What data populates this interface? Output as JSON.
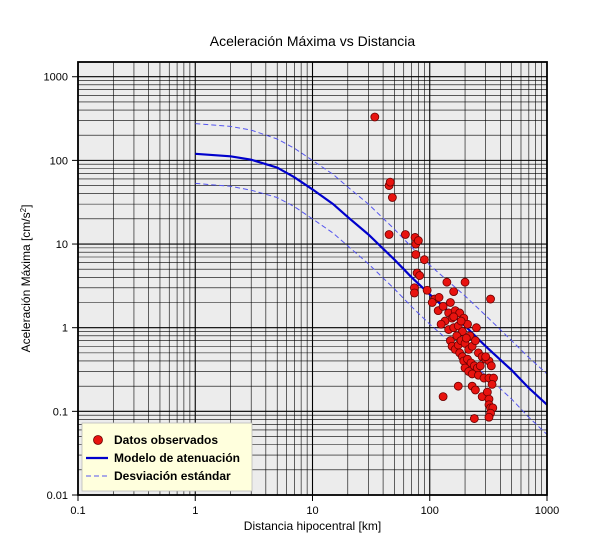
{
  "chart_data": {
    "type": "scatter",
    "title": "Aceleración Máxima vs Distancia",
    "xlabel": "Distancia hipocentral [km]",
    "ylabel": "Aceleración Máxima [cm/s",
    "ylabel_sup": "2",
    "ylabel_end": "]",
    "x_scale": "log",
    "y_scale": "log",
    "xlim": [
      0.1,
      1000
    ],
    "ylim": [
      0.01,
      1500
    ],
    "x_ticks": [
      {
        "value": 0.1,
        "label": "0.1"
      },
      {
        "value": 1,
        "label": "1"
      },
      {
        "value": 10,
        "label": "10"
      },
      {
        "value": 100,
        "label": "100"
      },
      {
        "value": 1000,
        "label": "1000"
      }
    ],
    "y_ticks": [
      {
        "value": 0.01,
        "label": "0.01"
      },
      {
        "value": 0.1,
        "label": "0.1"
      },
      {
        "value": 1,
        "label": "1"
      },
      {
        "value": 10,
        "label": "10"
      },
      {
        "value": 100,
        "label": "100"
      },
      {
        "value": 1000,
        "label": "1000"
      }
    ],
    "grid": true,
    "background_color": "#ececec",
    "legend_position": "bottom-left",
    "legend_background": "#ffffdd",
    "colors": {
      "points": "#e8130f",
      "model": "#0000cc",
      "deviation": "#5555ee"
    },
    "series": [
      {
        "name": "Datos observados",
        "kind": "scatter",
        "points": [
          [
            34,
            330
          ],
          [
            45,
            50
          ],
          [
            46,
            55
          ],
          [
            48,
            36
          ],
          [
            45,
            13
          ],
          [
            62,
            13
          ],
          [
            75,
            12
          ],
          [
            76,
            10
          ],
          [
            80,
            11
          ],
          [
            76,
            7.5
          ],
          [
            90,
            6.5
          ],
          [
            78,
            4.5
          ],
          [
            82,
            4.2
          ],
          [
            95,
            2.8
          ],
          [
            74,
            3.0
          ],
          [
            74,
            2.6
          ],
          [
            110,
            2.2
          ],
          [
            105,
            2.0
          ],
          [
            120,
            2.3
          ],
          [
            118,
            1.6
          ],
          [
            140,
            3.5
          ],
          [
            160,
            2.7
          ],
          [
            200,
            3.5
          ],
          [
            150,
            2.0
          ],
          [
            130,
            1.8
          ],
          [
            145,
            1.5
          ],
          [
            165,
            1.6
          ],
          [
            180,
            1.5
          ],
          [
            195,
            1.3
          ],
          [
            155,
            1.3
          ],
          [
            135,
            1.2
          ],
          [
            125,
            1.1
          ],
          [
            145,
            0.95
          ],
          [
            160,
            1.0
          ],
          [
            175,
            1.05
          ],
          [
            210,
            1.1
          ],
          [
            190,
            0.9
          ],
          [
            220,
            0.8
          ],
          [
            250,
            1.0
          ],
          [
            170,
            0.8
          ],
          [
            150,
            0.7
          ],
          [
            155,
            0.6
          ],
          [
            165,
            0.55
          ],
          [
            175,
            0.62
          ],
          [
            185,
            0.7
          ],
          [
            200,
            0.65
          ],
          [
            215,
            0.55
          ],
          [
            230,
            0.6
          ],
          [
            245,
            0.7
          ],
          [
            260,
            0.5
          ],
          [
            280,
            0.45
          ],
          [
            300,
            0.42
          ],
          [
            320,
            0.4
          ],
          [
            180,
            0.5
          ],
          [
            190,
            0.45
          ],
          [
            195,
            0.4
          ],
          [
            210,
            0.42
          ],
          [
            225,
            0.38
          ],
          [
            240,
            0.35
          ],
          [
            255,
            0.33
          ],
          [
            200,
            0.33
          ],
          [
            215,
            0.3
          ],
          [
            230,
            0.28
          ],
          [
            260,
            0.27
          ],
          [
            290,
            0.25
          ],
          [
            320,
            0.25
          ],
          [
            350,
            0.25
          ],
          [
            335,
            0.35
          ],
          [
            340,
            0.21
          ],
          [
            230,
            0.2
          ],
          [
            245,
            0.18
          ],
          [
            280,
            0.15
          ],
          [
            310,
            0.17
          ],
          [
            320,
            0.14
          ],
          [
            320,
            0.12
          ],
          [
            330,
            0.11
          ],
          [
            345,
            0.11
          ],
          [
            330,
            0.095
          ],
          [
            320,
            0.085
          ],
          [
            240,
            0.082
          ],
          [
            130,
            0.15
          ],
          [
            330,
            2.2
          ],
          [
            175,
            0.2
          ],
          [
            270,
            0.35
          ],
          [
            300,
            0.45
          ],
          [
            185,
            1.2
          ],
          [
            205,
            0.75
          ],
          [
            160,
            1.35
          ]
        ]
      },
      {
        "name": "Modelo de atenuación",
        "kind": "line",
        "points": [
          [
            1,
            120
          ],
          [
            2,
            112
          ],
          [
            3,
            102
          ],
          [
            5,
            82
          ],
          [
            7,
            63
          ],
          [
            10,
            45
          ],
          [
            15,
            30
          ],
          [
            20,
            21
          ],
          [
            30,
            13
          ],
          [
            50,
            6.5
          ],
          [
            70,
            4.0
          ],
          [
            100,
            2.5
          ],
          [
            150,
            1.5
          ],
          [
            200,
            1.05
          ],
          [
            300,
            0.6
          ],
          [
            500,
            0.31
          ],
          [
            700,
            0.19
          ],
          [
            1000,
            0.12
          ]
        ]
      },
      {
        "name": "Desviación estándar",
        "kind": "line",
        "points": [
          [
            1,
            275
          ],
          [
            2,
            255
          ],
          [
            3,
            230
          ],
          [
            5,
            180
          ],
          [
            7,
            140
          ],
          [
            10,
            100
          ],
          [
            15,
            68
          ],
          [
            20,
            48
          ],
          [
            30,
            30
          ],
          [
            50,
            15
          ],
          [
            70,
            9.2
          ],
          [
            100,
            5.6
          ],
          [
            150,
            3.4
          ],
          [
            200,
            2.4
          ],
          [
            300,
            1.4
          ],
          [
            500,
            0.7
          ],
          [
            700,
            0.44
          ],
          [
            1000,
            0.28
          ]
        ]
      },
      {
        "kind": "line",
        "points": [
          [
            1,
            53
          ],
          [
            2,
            49
          ],
          [
            3,
            44
          ],
          [
            5,
            36
          ],
          [
            7,
            28
          ],
          [
            10,
            20
          ],
          [
            15,
            13.5
          ],
          [
            20,
            9.5
          ],
          [
            30,
            5.8
          ],
          [
            50,
            2.9
          ],
          [
            70,
            1.78
          ],
          [
            100,
            1.1
          ],
          [
            150,
            0.67
          ],
          [
            200,
            0.46
          ],
          [
            300,
            0.27
          ],
          [
            500,
            0.14
          ],
          [
            700,
            0.085
          ],
          [
            1000,
            0.053
          ]
        ]
      }
    ]
  }
}
